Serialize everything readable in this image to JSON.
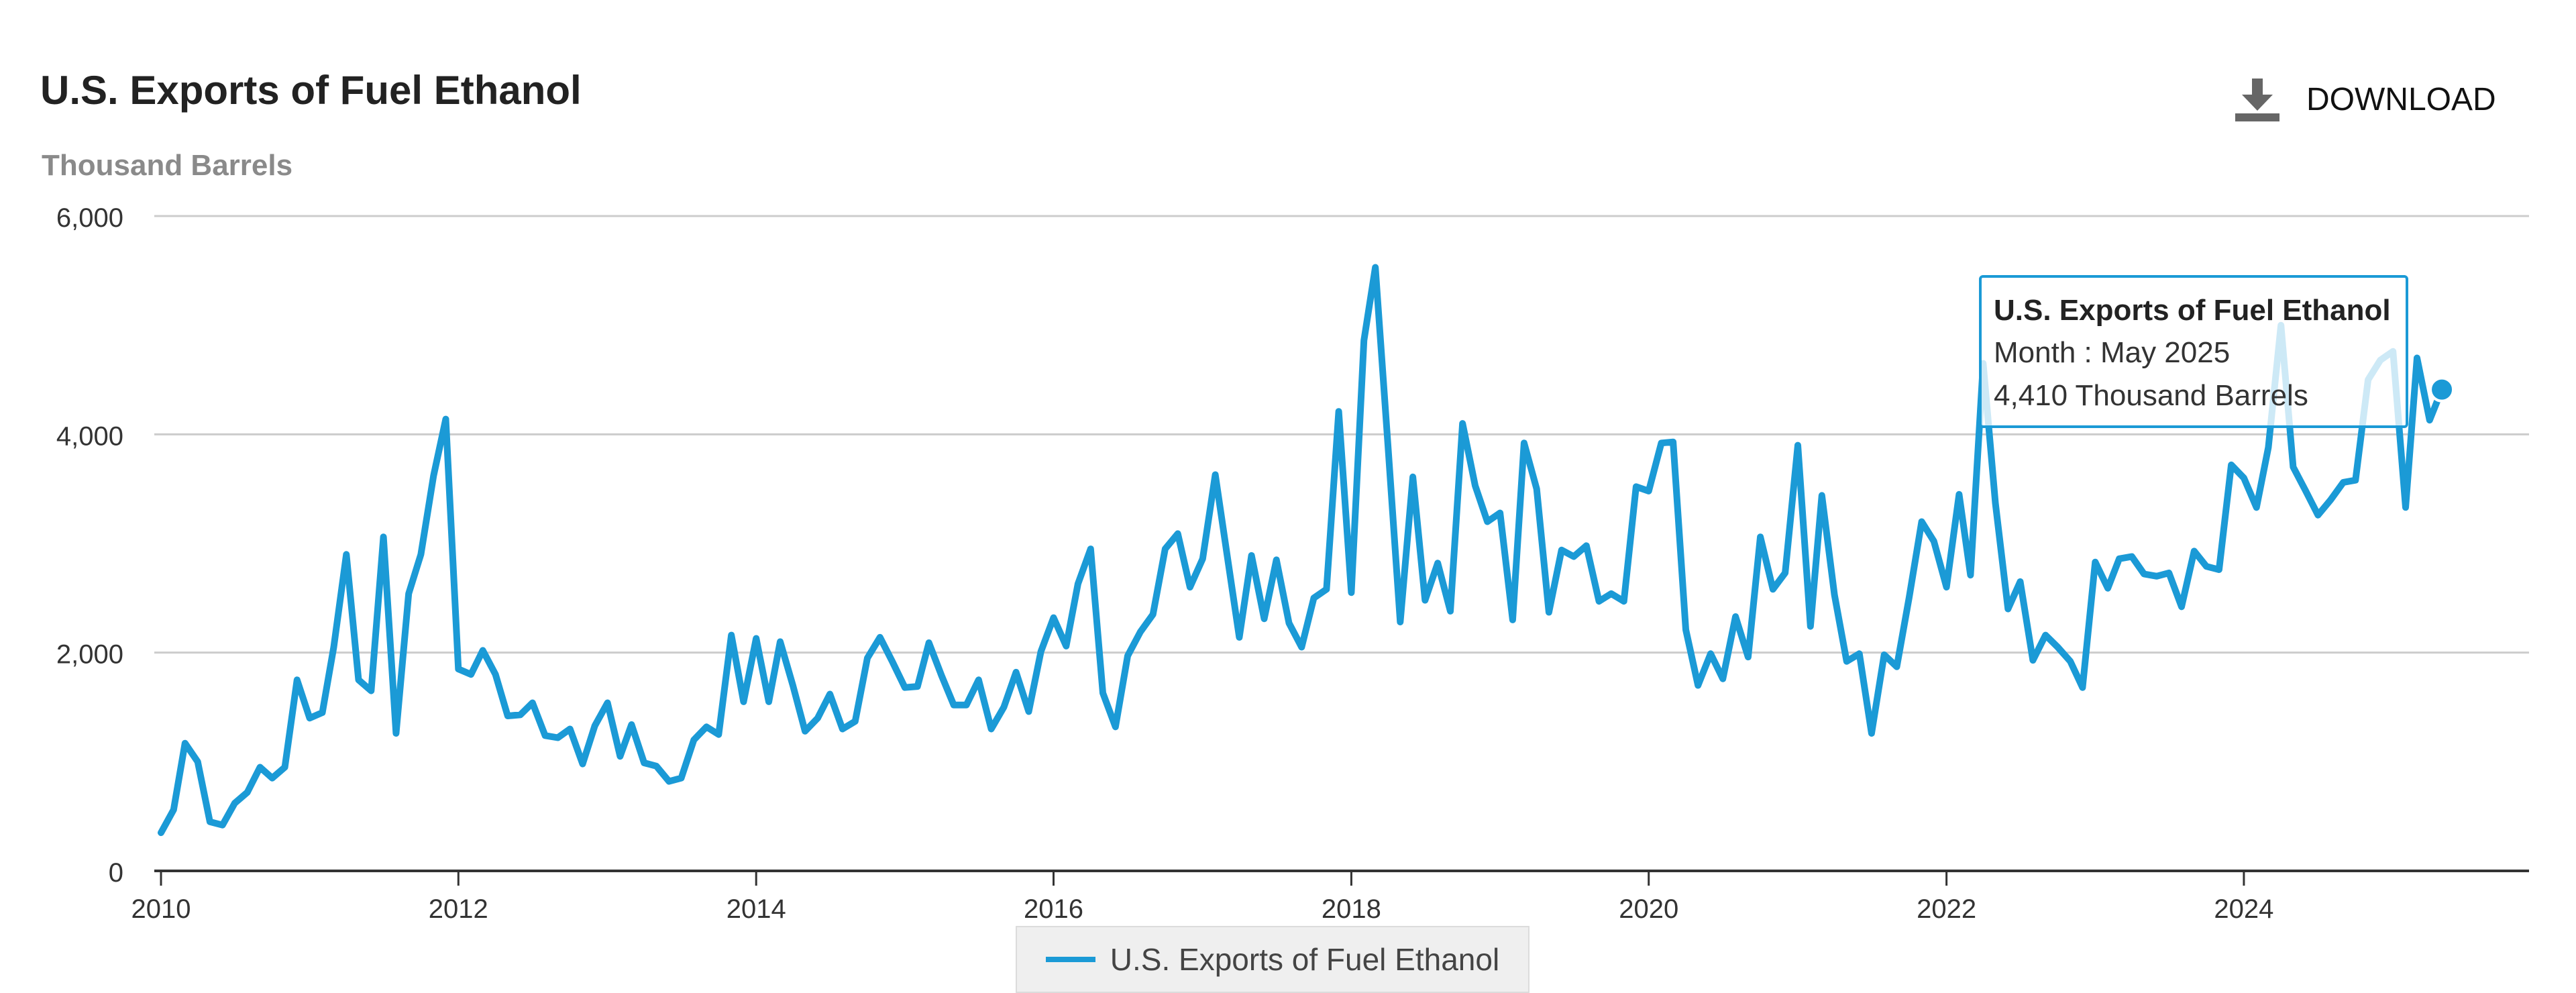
{
  "header": {
    "title": "U.S. Exports of Fuel Ethanol",
    "unit": "Thousand Barrels",
    "download_label": "DOWNLOAD",
    "download_icon": "download-icon"
  },
  "legend": {
    "label": "U.S. Exports of Fuel Ethanol"
  },
  "tooltip": {
    "title": "U.S. Exports of Fuel Ethanol",
    "month_text": "Month : May 2025",
    "value_text": "4,410 Thousand Barrels"
  },
  "chart_data": {
    "type": "line",
    "title": "U.S. Exports of Fuel Ethanol",
    "ylabel": "Thousand Barrels",
    "xlabel": "",
    "ylim": [
      0,
      6000
    ],
    "x_range": [
      "2010-01",
      "2025-12"
    ],
    "x_ticks": [
      "2010",
      "2012",
      "2014",
      "2016",
      "2018",
      "2020",
      "2022",
      "2024"
    ],
    "y_ticks": [
      "0",
      "2,000",
      "4,000",
      "6,000"
    ],
    "grid": true,
    "legend_position": "bottom-center",
    "colors": {
      "series": "#1b9ad6",
      "grid": "#cccccc",
      "axis": "#333333"
    },
    "series": [
      {
        "name": "U.S. Exports of Fuel Ethanol",
        "start": "2010-01",
        "frequency": "monthly",
        "values": [
          350,
          560,
          1170,
          1000,
          450,
          420,
          620,
          720,
          950,
          850,
          950,
          1750,
          1400,
          1450,
          2050,
          2900,
          1750,
          1650,
          3060,
          1260,
          2540,
          2900,
          3620,
          4140,
          1850,
          1800,
          2020,
          1800,
          1420,
          1430,
          1540,
          1240,
          1220,
          1300,
          980,
          1330,
          1540,
          1050,
          1340,
          990,
          960,
          820,
          850,
          1200,
          1320,
          1250,
          2160,
          1550,
          2130,
          1550,
          2100,
          1700,
          1280,
          1400,
          1620,
          1300,
          1370,
          1950,
          2140,
          1920,
          1680,
          1690,
          2090,
          1790,
          1520,
          1520,
          1750,
          1300,
          1500,
          1820,
          1460,
          2010,
          2320,
          2060,
          2630,
          2950,
          1630,
          1320,
          1970,
          2190,
          2350,
          2950,
          3090,
          2600,
          2860,
          3630,
          2920,
          2140,
          2890,
          2310,
          2850,
          2270,
          2050,
          2500,
          2580,
          4210,
          2550,
          4860,
          5530,
          3890,
          2280,
          3610,
          2480,
          2820,
          2380,
          4100,
          3530,
          3200,
          3280,
          2300,
          3920,
          3500,
          2370,
          2940,
          2880,
          2980,
          2470,
          2540,
          2470,
          3520,
          3480,
          3920,
          3930,
          2210,
          1700,
          1990,
          1760,
          2330,
          1960,
          3060,
          2580,
          2730,
          3900,
          2240,
          3440,
          2530,
          1920,
          1990,
          1260,
          1980,
          1870,
          2500,
          3200,
          3020,
          2600,
          3450,
          2710,
          4650,
          3370,
          2400,
          2650,
          1930,
          2160,
          2050,
          1920,
          1680,
          2830,
          2590,
          2860,
          2880,
          2720,
          2700,
          2730,
          2420,
          2930,
          2790,
          2760,
          3720,
          3600,
          3330,
          3880,
          5000,
          3700,
          3480,
          3260,
          3400,
          3560,
          3580,
          4500,
          4680,
          4760,
          3330,
          4700,
          4130,
          4410
        ]
      }
    ],
    "highlight": {
      "date": "2025-05",
      "value": 4410
    }
  }
}
